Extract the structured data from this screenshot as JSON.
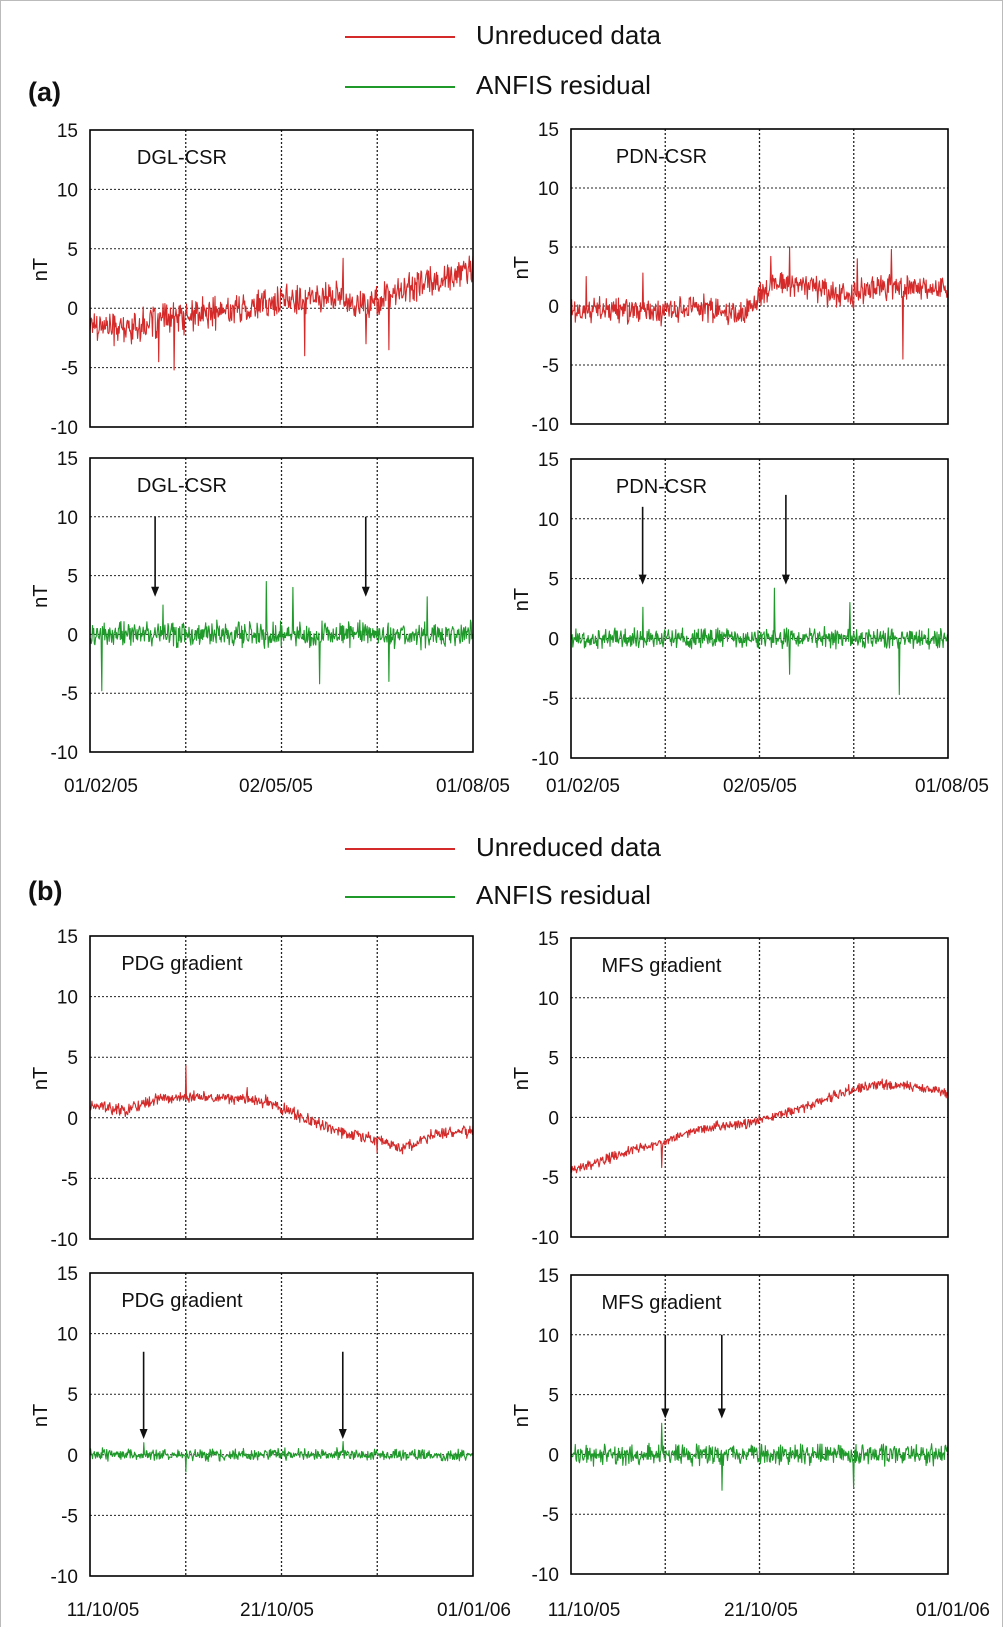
{
  "colors": {
    "unreduced": "#d42a2a",
    "residual": "#1f9a2a",
    "axis": "#000000",
    "grid": "#222222"
  },
  "sections": [
    {
      "label": "(a)",
      "legend": [
        {
          "text": "Unreduced data",
          "color": "#d42a2a"
        },
        {
          "text": "ANFIS residual",
          "color": "#1f9a2a"
        }
      ],
      "xticks_left": [
        "01/02/05",
        "02/05/05",
        "01/08/05"
      ],
      "xticks_right": [
        "01/02/05",
        "02/05/05",
        "01/08/05"
      ]
    },
    {
      "label": "(b)",
      "legend": [
        {
          "text": "Unreduced data",
          "color": "#d42a2a"
        },
        {
          "text": "ANFIS residual",
          "color": "#1f9a2a"
        }
      ],
      "xticks_left": [
        "11/10/05",
        "21/10/05",
        "01/01/06"
      ],
      "xticks_right": [
        "11/10/05",
        "21/10/05",
        "01/01/06"
      ]
    }
  ],
  "chart_data": [
    {
      "type": "line",
      "section": "a",
      "panel": "top-left",
      "title": "DGL-CSR",
      "ylabel": "nT",
      "ylim": [
        -10,
        15
      ],
      "yticks": [
        15,
        10,
        5,
        0,
        -5,
        -10
      ],
      "series": [
        {
          "kind": "unreduced",
          "trend": [
            -1.2,
            -1.8,
            -1.0,
            -0.6,
            -0.2,
            0.3,
            0.8,
            1.0,
            0.2,
            1.6,
            2.4,
            3.2
          ],
          "noise": 1.1,
          "spikes": [
            [
              0.18,
              -4.5
            ],
            [
              0.22,
              -5.2
            ],
            [
              0.56,
              -4.0
            ],
            [
              0.66,
              4.2
            ],
            [
              0.72,
              -3.0
            ],
            [
              0.78,
              -3.5
            ]
          ]
        }
      ],
      "vgrid": 4
    },
    {
      "type": "line",
      "section": "a",
      "panel": "top-right",
      "title": "PDN-CSR",
      "ylabel": "nT",
      "ylim": [
        -10,
        15
      ],
      "yticks": [
        15,
        10,
        5,
        0,
        -5,
        -10
      ],
      "series": [
        {
          "kind": "unreduced",
          "trend": [
            -0.4,
            -0.5,
            -0.3,
            -0.6,
            -0.2,
            -0.8,
            2.0,
            1.5,
            0.8,
            1.6,
            1.5,
            1.3
          ],
          "noise": 0.9,
          "spikes": [
            [
              0.04,
              2.5
            ],
            [
              0.19,
              2.8
            ],
            [
              0.53,
              4.2
            ],
            [
              0.58,
              5.0
            ],
            [
              0.76,
              4.0
            ],
            [
              0.85,
              4.8
            ],
            [
              0.88,
              -4.5
            ]
          ]
        }
      ],
      "vgrid": 4
    },
    {
      "type": "line",
      "section": "a",
      "panel": "bottom-left",
      "title": "DGL-CSR",
      "ylabel": "nT",
      "ylim": [
        -10,
        15
      ],
      "yticks": [
        15,
        10,
        5,
        0,
        -5,
        -10
      ],
      "series": [
        {
          "kind": "residual",
          "trend": [
            0,
            0,
            0,
            0,
            0,
            0,
            0,
            0,
            0,
            0,
            0,
            0
          ],
          "noise": 0.9,
          "spikes": [
            [
              0.03,
              -4.8
            ],
            [
              0.19,
              2.5
            ],
            [
              0.46,
              4.5
            ],
            [
              0.53,
              4.0
            ],
            [
              0.6,
              -4.2
            ],
            [
              0.78,
              -4.0
            ],
            [
              0.88,
              3.2
            ]
          ]
        }
      ],
      "arrows": [
        {
          "x": 0.17,
          "from": 10,
          "to": 3.2
        },
        {
          "x": 0.72,
          "from": 10,
          "to": 3.2
        }
      ],
      "vgrid": 4
    },
    {
      "type": "line",
      "section": "a",
      "panel": "bottom-right",
      "title": "PDN-CSR",
      "ylabel": "nT",
      "ylim": [
        -10,
        15
      ],
      "yticks": [
        15,
        10,
        5,
        0,
        -5,
        -10
      ],
      "series": [
        {
          "kind": "residual",
          "trend": [
            0,
            0,
            0,
            0,
            0,
            0,
            0,
            0,
            0,
            0,
            0,
            0
          ],
          "noise": 0.7,
          "spikes": [
            [
              0.19,
              2.6
            ],
            [
              0.54,
              4.2
            ],
            [
              0.58,
              -3.0
            ],
            [
              0.74,
              3.0
            ],
            [
              0.87,
              -4.7
            ]
          ]
        }
      ],
      "arrows": [
        {
          "x": 0.19,
          "from": 11,
          "to": 4.5
        },
        {
          "x": 0.57,
          "from": 12,
          "to": 4.5
        }
      ],
      "vgrid": 4
    },
    {
      "type": "line",
      "section": "b",
      "panel": "top-left",
      "title": "PDG gradient",
      "ylabel": "nT",
      "ylim": [
        -10,
        15
      ],
      "yticks": [
        15,
        10,
        5,
        0,
        -5,
        -10
      ],
      "series": [
        {
          "kind": "unreduced",
          "trend": [
            1.0,
            0.6,
            1.6,
            1.8,
            1.6,
            1.4,
            0.2,
            -1.0,
            -1.6,
            -2.5,
            -1.2,
            -1.1
          ],
          "noise": 0.4,
          "spikes": [
            [
              0.25,
              4.3
            ],
            [
              0.41,
              2.5
            ],
            [
              0.75,
              -2.9
            ]
          ]
        }
      ],
      "vgrid": 4
    },
    {
      "type": "line",
      "section": "b",
      "panel": "top-right",
      "title": "MFS gradient",
      "ylabel": "nT",
      "ylim": [
        -10,
        15
      ],
      "yticks": [
        15,
        10,
        5,
        0,
        -5,
        -10
      ],
      "series": [
        {
          "kind": "unreduced",
          "trend": [
            -4.6,
            -3.5,
            -2.5,
            -1.8,
            -0.8,
            -0.6,
            0.2,
            1.0,
            2.2,
            2.8,
            2.6,
            2.0
          ],
          "noise": 0.35,
          "spikes": [
            [
              0.24,
              -4.2
            ],
            [
              0.8,
              2.9
            ]
          ]
        }
      ],
      "vgrid": 4
    },
    {
      "type": "line",
      "section": "b",
      "panel": "bottom-left",
      "title": "PDG gradient",
      "ylabel": "nT",
      "ylim": [
        -10,
        15
      ],
      "yticks": [
        15,
        10,
        5,
        0,
        -5,
        -10
      ],
      "series": [
        {
          "kind": "residual",
          "trend": [
            0,
            0,
            0,
            0,
            0,
            0,
            0,
            0,
            0,
            0,
            0,
            0
          ],
          "noise": 0.4,
          "spikes": [
            [
              0.14,
              1.0
            ],
            [
              0.25,
              2.6
            ],
            [
              0.25,
              -1.4
            ],
            [
              0.66,
              1.1
            ]
          ]
        }
      ],
      "arrows": [
        {
          "x": 0.14,
          "from": 8.5,
          "to": 1.3
        },
        {
          "x": 0.66,
          "from": 8.5,
          "to": 1.3
        }
      ],
      "vgrid": 4
    },
    {
      "type": "line",
      "section": "b",
      "panel": "bottom-right",
      "title": "MFS gradient",
      "ylabel": "nT",
      "ylim": [
        -10,
        15
      ],
      "yticks": [
        15,
        10,
        5,
        0,
        -5,
        -10
      ],
      "series": [
        {
          "kind": "residual",
          "trend": [
            0,
            0,
            0,
            0,
            0,
            0,
            0,
            0,
            0,
            0,
            0,
            0
          ],
          "noise": 0.7,
          "spikes": [
            [
              0.24,
              -4.6
            ],
            [
              0.24,
              2.6
            ],
            [
              0.4,
              -3.0
            ],
            [
              0.75,
              -2.8
            ]
          ]
        }
      ],
      "arrows": [
        {
          "x": 0.25,
          "from": 10,
          "to": 3.0
        },
        {
          "x": 0.4,
          "from": 10,
          "to": 3.0
        }
      ],
      "vgrid": 4
    }
  ]
}
